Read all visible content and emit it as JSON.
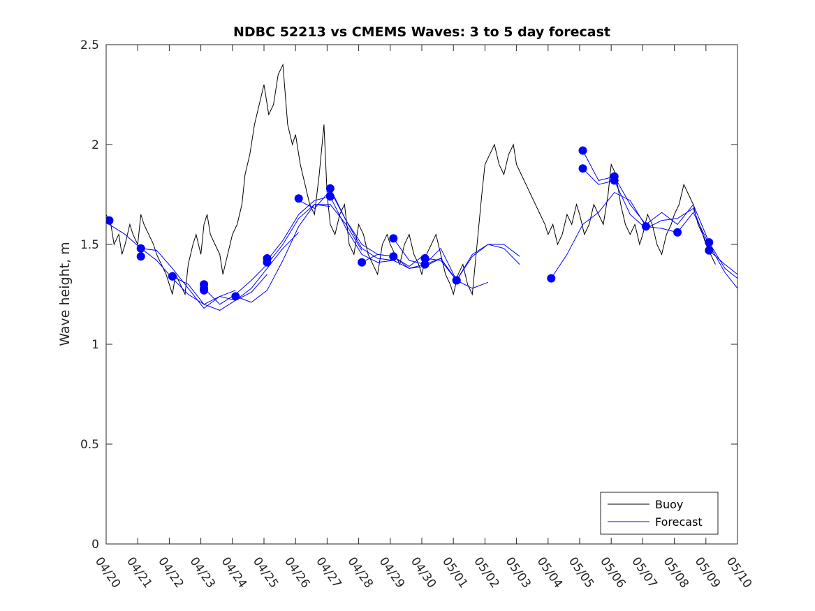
{
  "chart_data": {
    "type": "line",
    "title": "NDBC 52213 vs CMEMS Waves: 3 to 5 day forecast",
    "xlabel": "",
    "ylabel": "Wave height, m",
    "ylim": [
      0,
      2.5
    ],
    "xlim": [
      0,
      20
    ],
    "x_ticks": [
      "04/20",
      "04/21",
      "04/22",
      "04/23",
      "04/24",
      "04/25",
      "04/26",
      "04/27",
      "04/28",
      "04/29",
      "04/30",
      "05/01",
      "05/02",
      "05/03",
      "05/04",
      "05/05",
      "05/06",
      "05/07",
      "05/08",
      "05/09",
      "05/10"
    ],
    "y_ticks": [
      "0",
      "0.5",
      "1",
      "1.5",
      "2",
      "2.5"
    ],
    "legend_position": "bottom-right",
    "colors": {
      "buoy": "#000000",
      "forecast": "#0000ff",
      "axes": "#262626"
    },
    "series": [
      {
        "name": "Buoy",
        "x": [
          0,
          0.15,
          0.25,
          0.4,
          0.5,
          0.6,
          0.75,
          0.85,
          1.0,
          1.1,
          1.2,
          1.35,
          1.5,
          1.6,
          1.75,
          1.9,
          2.0,
          2.1,
          2.2,
          2.35,
          2.5,
          2.6,
          2.75,
          2.85,
          3.0,
          3.1,
          3.2,
          3.3,
          3.45,
          3.6,
          3.7,
          3.85,
          4.0,
          4.15,
          4.3,
          4.4,
          4.55,
          4.7,
          4.85,
          5.0,
          5.15,
          5.3,
          5.45,
          5.6,
          5.75,
          5.9,
          6.0,
          6.15,
          6.3,
          6.45,
          6.6,
          6.75,
          6.9,
          7.0,
          7.1,
          7.25,
          7.4,
          7.55,
          7.7,
          7.85,
          8.0,
          8.15,
          8.3,
          8.45,
          8.6,
          8.75,
          8.9,
          9.0,
          9.15,
          9.3,
          9.45,
          9.6,
          9.75,
          9.9,
          10.0,
          10.15,
          10.3,
          10.45,
          10.6,
          10.75,
          10.9,
          11.0,
          11.15,
          11.3,
          11.45,
          11.6,
          11.75,
          11.9,
          12.0,
          12.15,
          12.3,
          12.45,
          12.6,
          12.75,
          12.9,
          13.0,
          13.15,
          13.3,
          13.45,
          13.6,
          13.75,
          13.9,
          14.0,
          14.15,
          14.3,
          14.45,
          14.6,
          14.75,
          14.9,
          15.0,
          15.15,
          15.3,
          15.45,
          15.6,
          15.75,
          15.9,
          16.0,
          16.15,
          16.3,
          16.45,
          16.6,
          16.75,
          16.9,
          17.0,
          17.15,
          17.3,
          17.45,
          17.6,
          17.75,
          17.9,
          18.0,
          18.15,
          18.3,
          18.45,
          18.6,
          18.75,
          18.9,
          19.0,
          19.15,
          19.3
        ],
        "y": [
          1.65,
          1.6,
          1.5,
          1.55,
          1.45,
          1.5,
          1.6,
          1.55,
          1.5,
          1.65,
          1.6,
          1.55,
          1.5,
          1.45,
          1.4,
          1.35,
          1.3,
          1.25,
          1.35,
          1.3,
          1.25,
          1.4,
          1.5,
          1.55,
          1.45,
          1.6,
          1.65,
          1.55,
          1.5,
          1.45,
          1.35,
          1.45,
          1.55,
          1.6,
          1.7,
          1.85,
          1.95,
          2.1,
          2.2,
          2.3,
          2.15,
          2.2,
          2.35,
          2.4,
          2.1,
          2.0,
          2.05,
          1.9,
          1.8,
          1.7,
          1.65,
          1.85,
          2.1,
          1.75,
          1.6,
          1.55,
          1.65,
          1.7,
          1.5,
          1.45,
          1.6,
          1.55,
          1.45,
          1.4,
          1.35,
          1.5,
          1.55,
          1.5,
          1.45,
          1.4,
          1.5,
          1.55,
          1.45,
          1.4,
          1.35,
          1.45,
          1.5,
          1.55,
          1.45,
          1.35,
          1.3,
          1.25,
          1.35,
          1.4,
          1.3,
          1.25,
          1.5,
          1.75,
          1.9,
          1.95,
          2.0,
          1.9,
          1.85,
          1.95,
          2.0,
          1.9,
          1.85,
          1.8,
          1.75,
          1.7,
          1.65,
          1.6,
          1.55,
          1.6,
          1.5,
          1.55,
          1.65,
          1.6,
          1.7,
          1.65,
          1.55,
          1.6,
          1.7,
          1.65,
          1.6,
          1.75,
          1.9,
          1.85,
          1.7,
          1.6,
          1.55,
          1.6,
          1.5,
          1.55,
          1.65,
          1.6,
          1.5,
          1.45,
          1.55,
          1.6,
          1.65,
          1.7,
          1.8,
          1.75,
          1.7,
          1.6,
          1.55,
          1.5,
          1.45,
          1.4
        ]
      },
      {
        "name": "Forecast",
        "segments": [
          {
            "x": [
              0.1,
              0.6,
              1.1,
              1.6,
              2.1,
              2.6,
              3.1,
              3.6,
              4.1
            ],
            "y": [
              1.6,
              1.55,
              1.48,
              1.42,
              1.33,
              1.25,
              1.2,
              1.24,
              1.27
            ]
          },
          {
            "x": [
              1.1,
              1.6,
              2.1,
              2.6,
              3.1,
              3.6,
              4.1,
              4.6,
              5.1
            ],
            "y": [
              1.48,
              1.47,
              1.38,
              1.28,
              1.18,
              1.24,
              1.22,
              1.26,
              1.35
            ]
          },
          {
            "x": [
              2.1,
              2.6,
              3.1,
              3.6,
              4.1,
              4.6,
              5.1,
              5.6,
              6.1
            ],
            "y": [
              1.34,
              1.3,
              1.2,
              1.17,
              1.22,
              1.28,
              1.38,
              1.48,
              1.56
            ]
          },
          {
            "x": [
              3.1,
              3.6,
              4.1,
              4.6,
              5.1,
              5.6,
              6.1,
              6.6,
              7.1
            ],
            "y": [
              1.28,
              1.2,
              1.25,
              1.32,
              1.4,
              1.5,
              1.63,
              1.7,
              1.69
            ]
          },
          {
            "x": [
              4.1,
              4.6,
              5.1,
              5.6,
              6.1,
              6.6,
              7.1,
              7.6,
              8.1
            ],
            "y": [
              1.24,
              1.21,
              1.27,
              1.42,
              1.59,
              1.7,
              1.7,
              1.6,
              1.47
            ]
          },
          {
            "x": [
              5.1,
              5.6,
              6.1,
              6.6,
              7.1,
              7.6,
              8.1,
              8.6,
              9.1
            ],
            "y": [
              1.42,
              1.52,
              1.65,
              1.72,
              1.74,
              1.58,
              1.45,
              1.41,
              1.42
            ]
          },
          {
            "x": [
              6.1,
              6.6,
              7.1,
              7.6,
              8.1,
              8.6,
              9.1,
              9.6,
              10.1
            ],
            "y": [
              1.72,
              1.68,
              1.77,
              1.62,
              1.5,
              1.45,
              1.44,
              1.39,
              1.45
            ]
          },
          {
            "x": [
              7.1,
              7.6,
              8.1,
              8.6,
              9.1,
              9.6,
              10.1,
              10.6,
              11.1
            ],
            "y": [
              1.78,
              1.62,
              1.48,
              1.43,
              1.42,
              1.38,
              1.4,
              1.48,
              1.32
            ]
          },
          {
            "x": [
              8.1,
              8.6,
              9.1,
              9.6,
              10.1,
              10.6,
              11.1,
              11.6,
              12.1
            ],
            "y": [
              1.41,
              1.45,
              1.44,
              1.38,
              1.39,
              1.43,
              1.32,
              1.28,
              1.31
            ]
          },
          {
            "x": [
              9.1,
              9.6,
              10.1,
              10.6,
              11.1,
              11.6,
              12.1,
              12.6,
              13.1
            ],
            "y": [
              1.53,
              1.42,
              1.4,
              1.43,
              1.32,
              1.44,
              1.5,
              1.48,
              1.4
            ]
          },
          {
            "x": [
              10.1,
              10.6,
              11.1,
              11.6,
              12.1,
              12.6,
              13.1
            ],
            "y": [
              1.43,
              1.42,
              1.32,
              1.45,
              1.5,
              1.5,
              1.44
            ]
          },
          {
            "x": [
              14.1,
              14.6,
              15.1,
              15.6,
              16.1,
              16.6,
              17.1,
              17.6,
              18.1,
              18.6,
              19.1,
              19.6,
              20.0
            ],
            "y": [
              1.33,
              1.45,
              1.6,
              1.66,
              1.76,
              1.72,
              1.59,
              1.58,
              1.56,
              1.66,
              1.5,
              1.36,
              1.28
            ]
          },
          {
            "x": [
              15.1,
              15.6,
              16.1,
              16.6,
              17.1,
              17.6,
              18.1,
              18.6,
              19.1,
              19.6,
              20.0
            ],
            "y": [
              1.97,
              1.82,
              1.84,
              1.7,
              1.6,
              1.66,
              1.6,
              1.7,
              1.51,
              1.38,
              1.33
            ]
          },
          {
            "x": [
              15.1,
              15.6,
              16.1,
              16.6,
              17.1,
              17.6,
              18.1,
              18.6,
              19.1,
              19.6,
              20.0
            ],
            "y": [
              1.88,
              1.8,
              1.82,
              1.65,
              1.58,
              1.62,
              1.63,
              1.68,
              1.47,
              1.4,
              1.35
            ]
          }
        ],
        "markers": {
          "x": [
            0.1,
            1.1,
            1.1,
            2.1,
            2.1,
            3.1,
            3.1,
            3.1,
            4.1,
            5.1,
            5.1,
            6.1,
            7.1,
            7.1,
            8.1,
            9.1,
            9.1,
            10.1,
            10.1,
            11.1,
            11.1,
            14.1,
            15.1,
            15.1,
            16.1,
            16.1,
            17.1,
            18.1,
            19.1,
            19.1
          ],
          "y": [
            1.62,
            1.48,
            1.44,
            1.34,
            1.34,
            1.3,
            1.28,
            1.27,
            1.24,
            1.43,
            1.41,
            1.73,
            1.78,
            1.74,
            1.41,
            1.53,
            1.44,
            1.43,
            1.4,
            1.32,
            1.32,
            1.33,
            1.97,
            1.88,
            1.84,
            1.82,
            1.59,
            1.56,
            1.51,
            1.47
          ]
        }
      }
    ],
    "legend": {
      "buoy_label": "Buoy",
      "forecast_label": "Forecast"
    }
  }
}
